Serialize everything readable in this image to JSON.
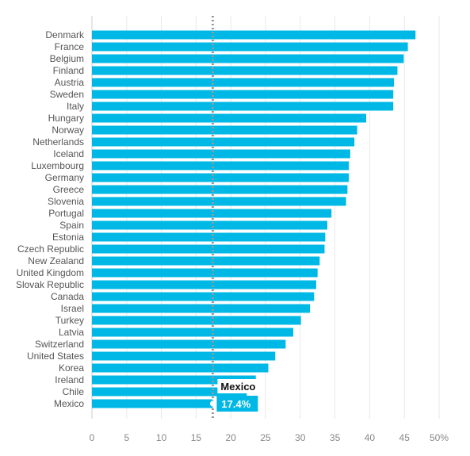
{
  "chart_data": {
    "type": "bar",
    "orientation": "horizontal",
    "categories": [
      "Denmark",
      "France",
      "Belgium",
      "Finland",
      "Austria",
      "Sweden",
      "Italy",
      "Hungary",
      "Norway",
      "Netherlands",
      "Iceland",
      "Luxembourg",
      "Germany",
      "Greece",
      "Slovenia",
      "Portugal",
      "Spain",
      "Estonia",
      "Czech Republic",
      "New Zealand",
      "United Kingdom",
      "Slovak Republic",
      "Canada",
      "Israel",
      "Turkey",
      "Latvia",
      "Switzerland",
      "United States",
      "Korea",
      "Ireland",
      "Chile",
      "Mexico"
    ],
    "values": [
      46.6,
      45.5,
      44.9,
      44.0,
      43.5,
      43.4,
      43.4,
      39.5,
      38.2,
      37.8,
      37.2,
      37.0,
      37.0,
      36.8,
      36.6,
      34.5,
      33.9,
      33.6,
      33.5,
      32.8,
      32.5,
      32.3,
      32.0,
      31.4,
      30.1,
      29.0,
      27.9,
      26.4,
      25.4,
      23.6,
      22.3,
      17.4
    ],
    "xlim": [
      0,
      50
    ],
    "x_ticks": [
      "0",
      "5",
      "10",
      "15",
      "20",
      "25",
      "30",
      "35",
      "40",
      "45",
      "50%"
    ],
    "x_tick_values": [
      0,
      5,
      10,
      15,
      20,
      25,
      30,
      35,
      40,
      45,
      50
    ],
    "title": "",
    "xlabel": "",
    "ylabel": "",
    "grid": "vertical",
    "reference_line": {
      "value": 17.4,
      "style": "dotted"
    },
    "annotation": {
      "category": "Mexico",
      "label": "Mexico",
      "value_label": "17.4%"
    },
    "colors": {
      "bar": "#00b8e6",
      "grid": "#e8e8e8",
      "reference_line": "#999999",
      "annotation_bg": "#00b8e6"
    }
  }
}
